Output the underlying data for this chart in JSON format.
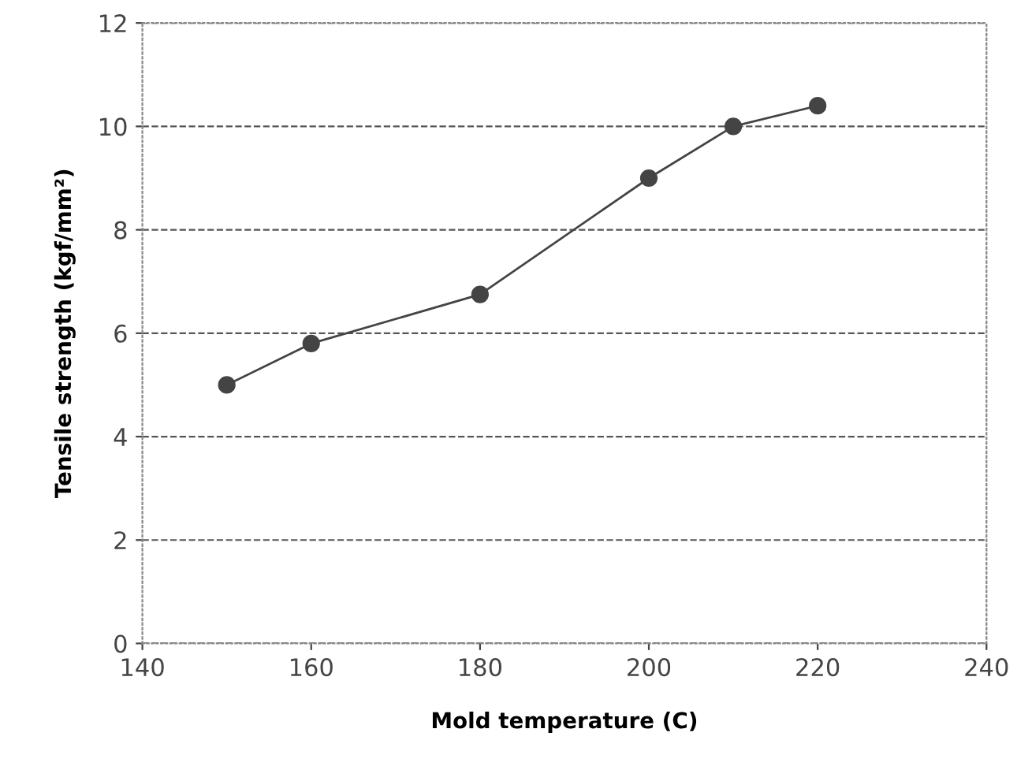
{
  "chart_data": {
    "type": "line",
    "xlabel": "Mold temperature (C)",
    "ylabel": "Tensile strength (kgf/mm²)",
    "x": [
      150,
      160,
      180,
      200,
      210,
      220
    ],
    "series": [
      {
        "color": "#444444",
        "values": [
          5.0,
          5.8,
          6.75,
          9.0,
          10.0,
          10.4
        ]
      }
    ],
    "xlim": [
      140,
      240
    ],
    "xticks": [
      140,
      160,
      180,
      200,
      220,
      240
    ],
    "ylim": [
      0,
      12
    ],
    "yticks": [
      0,
      2,
      4,
      6,
      8,
      10,
      12
    ],
    "grid": "y",
    "marker": "circle",
    "line_style": "solid"
  }
}
